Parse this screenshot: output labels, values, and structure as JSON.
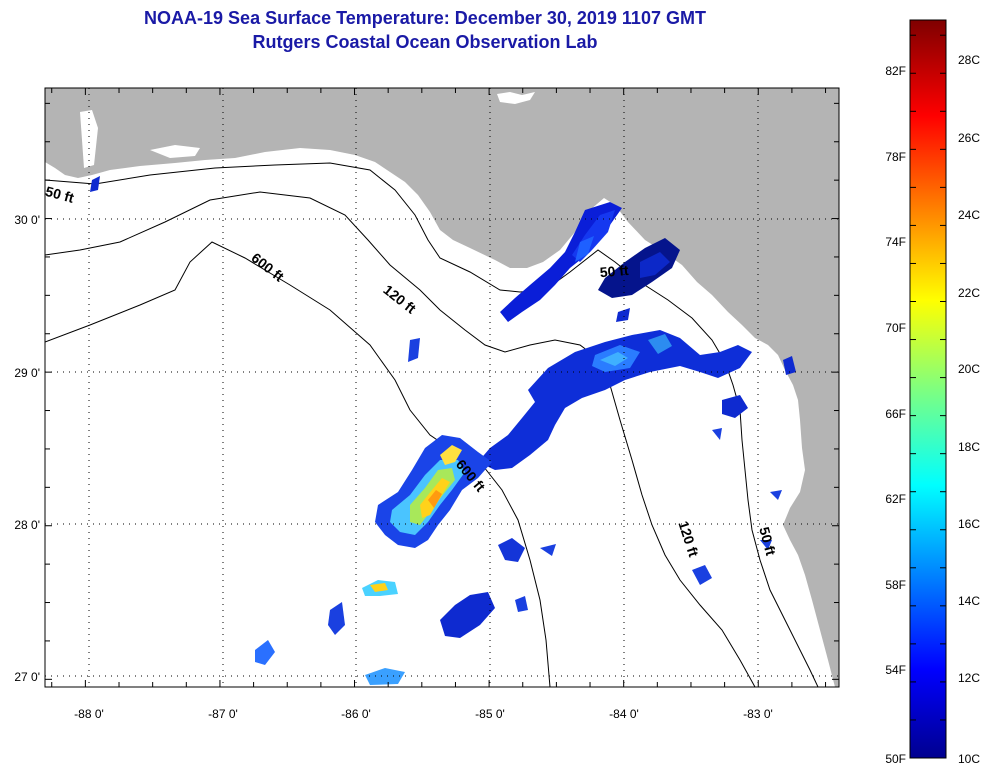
{
  "title": {
    "line1": "NOAA-19 Sea Surface Temperature:  December 30, 2019 1107 GMT",
    "line2": "Rutgers Coastal Ocean Observation Lab"
  },
  "map": {
    "lon_range": [
      -88.3,
      -82.4
    ],
    "lat_range": [
      26.95,
      30.85
    ],
    "lon_ticks": [
      -88,
      -87,
      -86,
      -85,
      -84,
      -83
    ],
    "lat_ticks": [
      27,
      28,
      29,
      30
    ],
    "lon_labels": [
      "-88 0'",
      "-87 0'",
      "-86 0'",
      "-85 0'",
      "-84 0'",
      "-83 0'"
    ],
    "lat_labels": [
      "27 0'",
      "28 0'",
      "29 0'",
      "30 0'"
    ],
    "contour_labels": [
      "50 ft",
      "600 ft",
      "120 ft",
      "600 ft",
      "50 ft",
      "120 ft",
      "50 ft"
    ],
    "land_color": "#b4b4b4",
    "grid": true
  },
  "colorbar": {
    "fahrenheit_labels": [
      "50F",
      "54F",
      "58F",
      "62F",
      "66F",
      "70F",
      "74F",
      "78F",
      "82F"
    ],
    "celsius_labels": [
      "10C",
      "12C",
      "14C",
      "16C",
      "18C",
      "20C",
      "22C",
      "24C",
      "26C",
      "28C"
    ],
    "range_c": [
      10,
      29.4
    ]
  }
}
